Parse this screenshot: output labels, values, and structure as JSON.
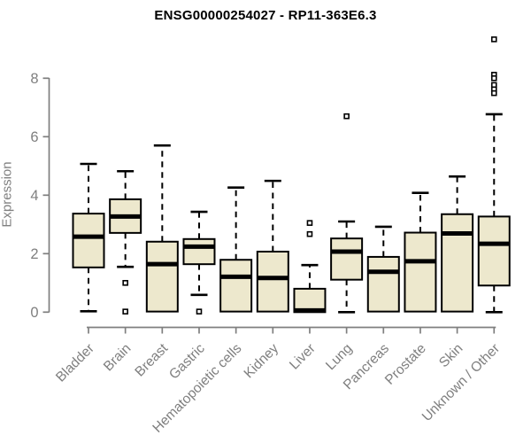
{
  "chart_data": {
    "type": "boxplot",
    "title": "ENSG00000254027 - RP11-363E6.3",
    "xlabel": "",
    "ylabel": "Expression",
    "ylim": [
      0,
      9.5
    ],
    "yticks": [
      0,
      2,
      4,
      6,
      8
    ],
    "grid": false,
    "legend": "none",
    "colors": {
      "box_fill": "#EDE8CD",
      "box_stroke": "#000000",
      "median": "#000000",
      "whisker": "#000000",
      "outlier_fill": "#ffffff",
      "outlier_stroke": "#000000",
      "axis": "#7f7f7f",
      "tick_text": "#7f7f7f",
      "title_text": "#000000"
    },
    "categories": [
      "Bladder",
      "Brain",
      "Breast",
      "Gastric",
      "Hematopoietic cells",
      "Kidney",
      "Liver",
      "Lung",
      "Pancreas",
      "Prostate",
      "Skin",
      "Unknown / Other"
    ],
    "series": [
      {
        "name": "Bladder",
        "whisker_low": 0.03,
        "q1": 1.53,
        "median": 2.58,
        "q3": 3.37,
        "whisker_high": 5.07,
        "outliers": []
      },
      {
        "name": "Brain",
        "whisker_low": 1.55,
        "q1": 2.71,
        "median": 3.27,
        "q3": 3.86,
        "whisker_high": 4.82,
        "outliers": [
          1.0,
          0.02
        ]
      },
      {
        "name": "Breast",
        "whisker_low": 0.02,
        "q1": 0.02,
        "median": 1.64,
        "q3": 2.41,
        "whisker_high": 5.7,
        "outliers": []
      },
      {
        "name": "Gastric",
        "whisker_low": 0.59,
        "q1": 1.64,
        "median": 2.24,
        "q3": 2.5,
        "whisker_high": 3.43,
        "outliers": [
          0.02
        ]
      },
      {
        "name": "Hematopoietic cells",
        "whisker_low": 0.02,
        "q1": 0.02,
        "median": 1.21,
        "q3": 1.79,
        "whisker_high": 4.26,
        "outliers": []
      },
      {
        "name": "Kidney",
        "whisker_low": 0.02,
        "q1": 0.02,
        "median": 1.17,
        "q3": 2.07,
        "whisker_high": 4.49,
        "outliers": []
      },
      {
        "name": "Liver",
        "whisker_low": 0.0,
        "q1": 0.0,
        "median": 0.06,
        "q3": 0.8,
        "whisker_high": 1.61,
        "outliers": [
          2.67,
          3.05
        ]
      },
      {
        "name": "Lung",
        "whisker_low": 0.0,
        "q1": 1.11,
        "median": 2.07,
        "q3": 2.52,
        "whisker_high": 3.1,
        "outliers": [
          6.7
        ]
      },
      {
        "name": "Pancreas",
        "whisker_low": 0.02,
        "q1": 0.02,
        "median": 1.38,
        "q3": 1.89,
        "whisker_high": 2.92,
        "outliers": []
      },
      {
        "name": "Prostate",
        "whisker_low": 0.02,
        "q1": 0.02,
        "median": 1.74,
        "q3": 2.72,
        "whisker_high": 4.08,
        "outliers": []
      },
      {
        "name": "Skin",
        "whisker_low": 0.02,
        "q1": 0.02,
        "median": 2.69,
        "q3": 3.35,
        "whisker_high": 4.64,
        "outliers": []
      },
      {
        "name": "Unknown / Other",
        "whisker_low": 0.0,
        "q1": 0.91,
        "median": 2.34,
        "q3": 3.27,
        "whisker_high": 6.77,
        "outliers": [
          9.33,
          8.12,
          8.0,
          7.77,
          7.62,
          7.49
        ]
      }
    ]
  }
}
